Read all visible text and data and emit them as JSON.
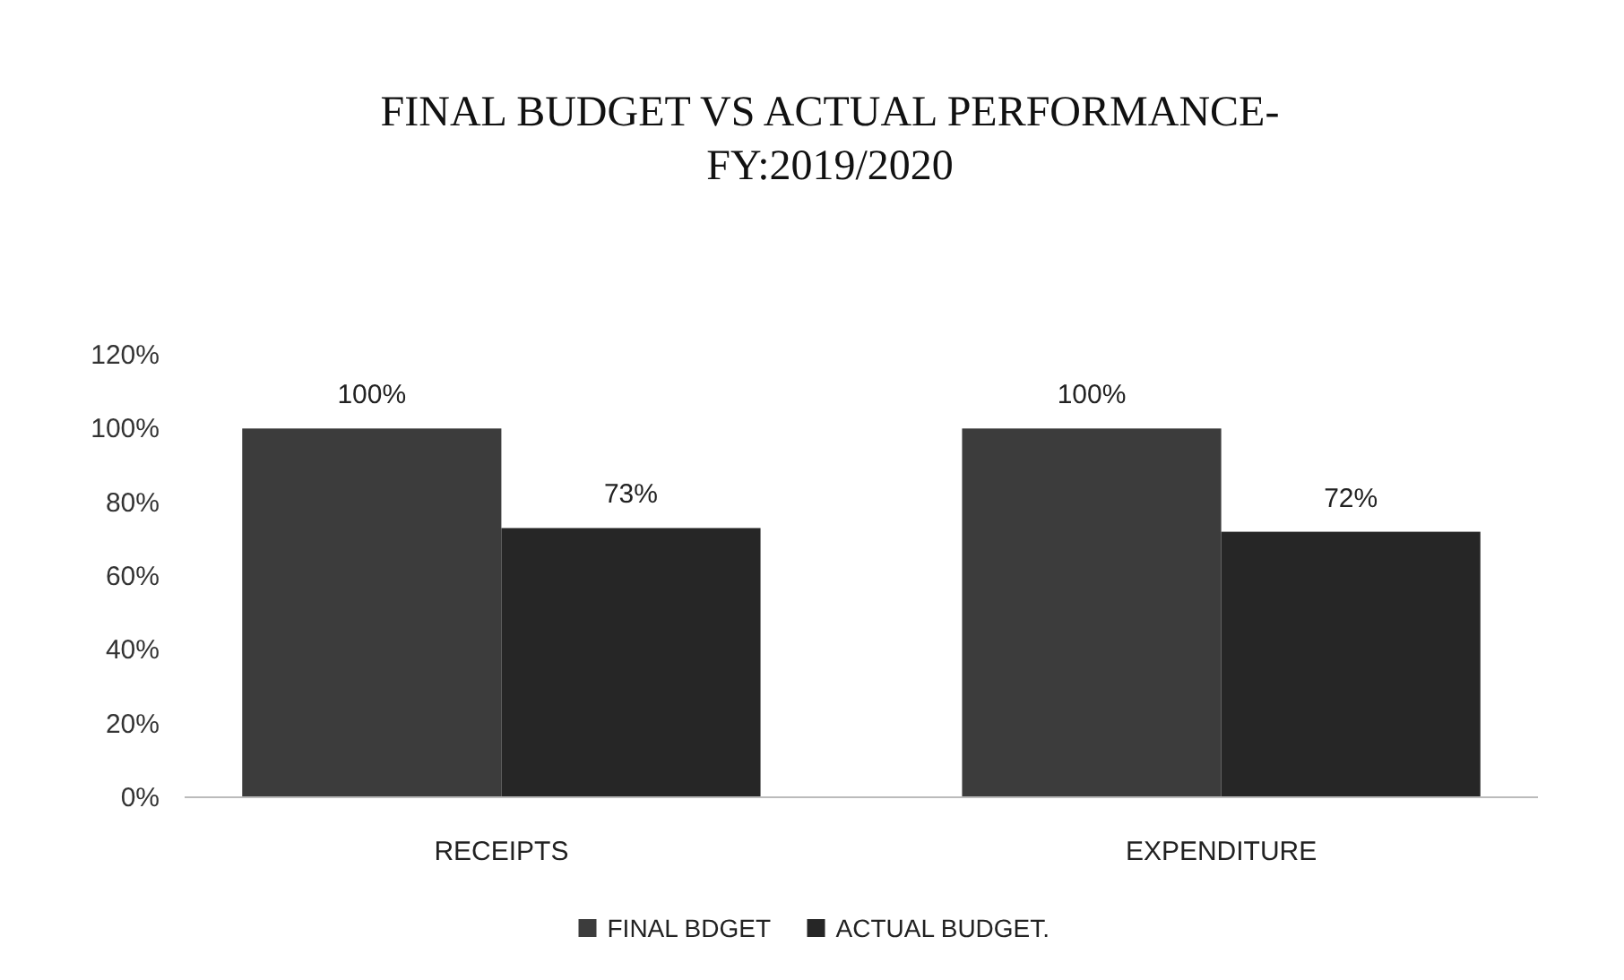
{
  "chart_data": {
    "type": "bar",
    "title": "FINAL BUDGET VS ACTUAL PERFORMANCE-\nFY:2019/2020",
    "categories": [
      "RECEIPTS",
      "EXPENDITURE"
    ],
    "series": [
      {
        "name": "FINAL BDGET",
        "color": "#3c3c3c",
        "values": [
          100,
          100
        ],
        "value_labels": [
          "100%",
          "100%"
        ]
      },
      {
        "name": "ACTUAL BUDGET.",
        "color": "#262626",
        "values": [
          73,
          72
        ],
        "value_labels": [
          "73%",
          "72%"
        ]
      }
    ],
    "ylim": [
      0,
      120
    ],
    "yticks": [
      {
        "value": 0,
        "label": "0%"
      },
      {
        "value": 20,
        "label": "20%"
      },
      {
        "value": 40,
        "label": "40%"
      },
      {
        "value": 60,
        "label": "60%"
      },
      {
        "value": 80,
        "label": "80%"
      },
      {
        "value": 100,
        "label": "100%"
      },
      {
        "value": 120,
        "label": "120%"
      }
    ],
    "grid": false,
    "legend": "bottom"
  }
}
